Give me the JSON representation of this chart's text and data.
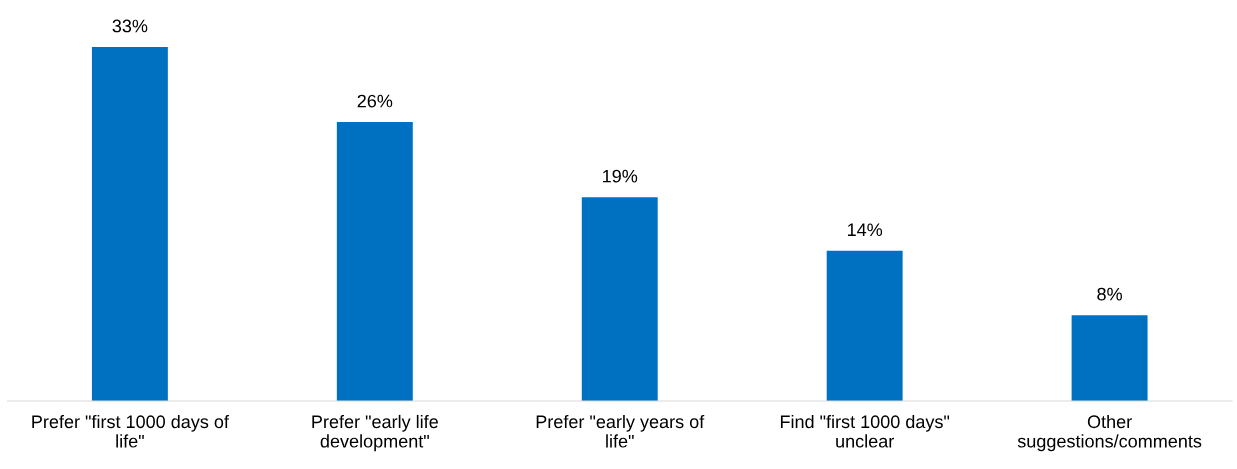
{
  "chart_data": {
    "type": "bar",
    "categories": [
      "Prefer \"first 1000 days of\nlife\"",
      "Prefer \"early life\ndevelopment\"",
      "Prefer \"early years of\nlife\"",
      "Find \"first 1000 days\"\nunclear",
      "Other\nsuggestions/comments"
    ],
    "values": [
      33,
      26,
      19,
      14,
      8
    ],
    "value_labels": [
      "33%",
      "26%",
      "19%",
      "14%",
      "8%"
    ],
    "color": "#0070c0"
  }
}
